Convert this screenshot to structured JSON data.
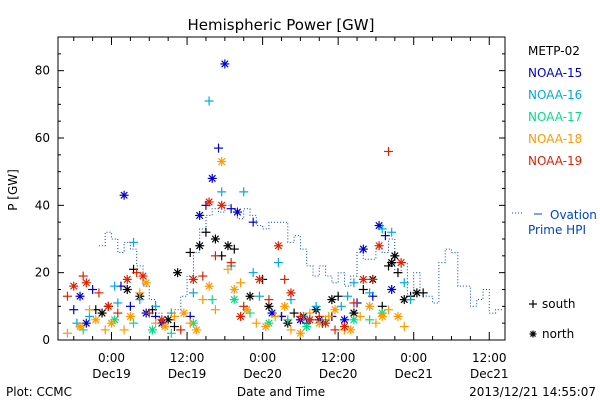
{
  "chart_data": {
    "type": "scatter",
    "title": "Hemispheric Power [GW]",
    "xlabel": "Date and Time",
    "ylabel": "P [GW]",
    "ylim": [
      0,
      90
    ],
    "xlim": [
      -8.5,
      62.5
    ],
    "yticks": [
      0,
      20,
      40,
      60,
      80
    ],
    "xticks": [
      {
        "hour": 0,
        "time": "0:00",
        "date": "Dec19"
      },
      {
        "hour": 12,
        "time": "12:00",
        "date": "Dec19"
      },
      {
        "hour": 24,
        "time": "0:00",
        "date": "Dec20"
      },
      {
        "hour": 36,
        "time": "12:00",
        "date": "Dec20"
      },
      {
        "hour": 48,
        "time": "0:00",
        "date": "Dec21"
      },
      {
        "hour": 60,
        "time": "12:00",
        "date": "Dec21"
      }
    ],
    "legend_placement": "right",
    "series": [
      {
        "name": "METP-02",
        "color": "#000000",
        "marker": "mixed",
        "points": [
          [
            -2.5,
            9
          ],
          [
            -1.5,
            8
          ],
          [
            -0.5,
            10
          ],
          [
            2.5,
            15
          ],
          [
            3.5,
            21
          ],
          [
            4.5,
            13
          ],
          [
            6.5,
            9
          ],
          [
            9,
            6
          ],
          [
            10,
            4
          ],
          [
            10.5,
            20
          ],
          [
            12.5,
            26
          ],
          [
            14,
            28
          ],
          [
            15,
            32
          ],
          [
            16.5,
            30
          ],
          [
            17.5,
            25
          ],
          [
            18.5,
            28
          ],
          [
            19.5,
            27
          ],
          [
            22,
            13
          ],
          [
            24,
            18
          ],
          [
            25,
            10
          ],
          [
            27,
            7
          ],
          [
            28,
            5
          ],
          [
            29,
            8
          ],
          [
            30.5,
            7
          ],
          [
            31.5,
            6
          ],
          [
            32.5,
            9
          ],
          [
            33.5,
            5
          ],
          [
            35,
            12
          ],
          [
            36,
            13
          ],
          [
            38.5,
            8
          ],
          [
            40,
            15
          ],
          [
            41.5,
            18
          ],
          [
            43,
            10
          ],
          [
            44.5,
            23
          ],
          [
            45.5,
            20
          ],
          [
            46.5,
            12
          ],
          [
            47.5,
            13
          ],
          [
            48.5,
            14
          ],
          [
            49.5,
            14
          ],
          [
            45,
            25
          ],
          [
            44,
            22
          ]
        ]
      },
      {
        "name": "NOAA-15",
        "color": "#0000cc",
        "marker": "mixed",
        "points": [
          [
            -6,
            9
          ],
          [
            -5,
            13
          ],
          [
            -3,
            15
          ],
          [
            -4,
            5
          ],
          [
            1.5,
            16
          ],
          [
            2,
            43
          ],
          [
            3,
            10
          ],
          [
            5.5,
            8
          ],
          [
            7,
            7
          ],
          [
            8,
            5
          ],
          [
            12.5,
            7
          ],
          [
            14,
            37
          ],
          [
            15,
            40
          ],
          [
            16,
            48
          ],
          [
            17,
            57
          ],
          [
            18,
            82
          ],
          [
            19,
            39
          ],
          [
            20,
            38
          ],
          [
            22.5,
            35
          ],
          [
            25.5,
            8
          ],
          [
            27,
            7
          ],
          [
            30,
            6
          ],
          [
            31,
            5
          ],
          [
            33,
            6
          ],
          [
            35,
            7
          ],
          [
            37,
            6
          ],
          [
            39,
            11
          ],
          [
            40,
            27
          ],
          [
            41.5,
            13
          ],
          [
            42.5,
            34
          ],
          [
            43.5,
            31
          ],
          [
            44.5,
            15
          ]
        ]
      },
      {
        "name": "NOAA-16",
        "color": "#00aadd",
        "marker": "plus",
        "points": [
          [
            -5.5,
            5
          ],
          [
            -3.5,
            7
          ],
          [
            0.5,
            16
          ],
          [
            1,
            11
          ],
          [
            3.5,
            29
          ],
          [
            4.5,
            12
          ],
          [
            7,
            10
          ],
          [
            9.5,
            8
          ],
          [
            13,
            14
          ],
          [
            15.5,
            71
          ],
          [
            17.5,
            44
          ],
          [
            19,
            22
          ],
          [
            21,
            44
          ],
          [
            22.5,
            20
          ],
          [
            23.5,
            13
          ],
          [
            26.5,
            23
          ],
          [
            28.5,
            12
          ],
          [
            30.5,
            7
          ],
          [
            32.5,
            10
          ],
          [
            36.5,
            10
          ],
          [
            37.5,
            13
          ],
          [
            38.5,
            17
          ],
          [
            41,
            14
          ],
          [
            43,
            33
          ],
          [
            44.5,
            32
          ],
          [
            46.5,
            17
          ],
          [
            47.5,
            12
          ]
        ]
      },
      {
        "name": "NOAA-17",
        "color": "#00dd88",
        "marker": "mixed",
        "points": [
          [
            -4.5,
            3
          ],
          [
            0.5,
            6
          ],
          [
            3.5,
            5
          ],
          [
            6.5,
            3
          ],
          [
            9.5,
            2
          ],
          [
            13,
            5
          ],
          [
            16,
            12
          ],
          [
            19.5,
            12
          ],
          [
            22,
            8
          ],
          [
            25,
            5
          ],
          [
            28,
            6
          ],
          [
            31,
            4
          ],
          [
            34,
            6
          ],
          [
            38.5,
            6
          ],
          [
            41,
            6
          ],
          [
            43,
            8
          ]
        ]
      },
      {
        "name": "NOAA-18",
        "color": "#ff9900",
        "marker": "mixed",
        "points": [
          [
            -7,
            2
          ],
          [
            -5,
            4
          ],
          [
            -3.5,
            9
          ],
          [
            -2.5,
            6
          ],
          [
            -1,
            3
          ],
          [
            0,
            5
          ],
          [
            2,
            3
          ],
          [
            3,
            7
          ],
          [
            4.5,
            14
          ],
          [
            5.5,
            17
          ],
          [
            7,
            5
          ],
          [
            8.5,
            4
          ],
          [
            10,
            7
          ],
          [
            11.5,
            8
          ],
          [
            12.5,
            5
          ],
          [
            13.5,
            3
          ],
          [
            14.5,
            12
          ],
          [
            15.5,
            16
          ],
          [
            16.5,
            9
          ],
          [
            17.5,
            53
          ],
          [
            18.5,
            21
          ],
          [
            19.5,
            15
          ],
          [
            20.5,
            17
          ],
          [
            21.5,
            9
          ],
          [
            23,
            5
          ],
          [
            24.5,
            4
          ],
          [
            26,
            7
          ],
          [
            27.5,
            10
          ],
          [
            28.5,
            3
          ],
          [
            30,
            2
          ],
          [
            31.5,
            8
          ],
          [
            33,
            5
          ],
          [
            34.5,
            7
          ],
          [
            35.5,
            9
          ],
          [
            37,
            3
          ],
          [
            38,
            3
          ],
          [
            39.5,
            7
          ],
          [
            41,
            10
          ],
          [
            42,
            5
          ],
          [
            43,
            7
          ],
          [
            44,
            9
          ],
          [
            45.5,
            7
          ],
          [
            46.5,
            4
          ]
        ]
      },
      {
        "name": "NOAA-19",
        "color": "#dd2200",
        "marker": "mixed",
        "points": [
          [
            -7,
            13
          ],
          [
            -6,
            16
          ],
          [
            -4.5,
            19
          ],
          [
            -4,
            17
          ],
          [
            -2,
            14
          ],
          [
            -0.5,
            10
          ],
          [
            1,
            8
          ],
          [
            2.5,
            18
          ],
          [
            4,
            20
          ],
          [
            5,
            19
          ],
          [
            6,
            8
          ],
          [
            8,
            6
          ],
          [
            11,
            3
          ],
          [
            13,
            18
          ],
          [
            14.5,
            19
          ],
          [
            15.5,
            41
          ],
          [
            16.5,
            25
          ],
          [
            17.5,
            40
          ],
          [
            19,
            23
          ],
          [
            20.5,
            7
          ],
          [
            21,
            10
          ],
          [
            23.5,
            18
          ],
          [
            25,
            12
          ],
          [
            26.5,
            28
          ],
          [
            27.5,
            18
          ],
          [
            28.5,
            14
          ],
          [
            30,
            7
          ],
          [
            31.5,
            6
          ],
          [
            33,
            7
          ],
          [
            34,
            5
          ],
          [
            35.5,
            3
          ],
          [
            37,
            4
          ],
          [
            38.5,
            11
          ],
          [
            40,
            18
          ],
          [
            41.5,
            18
          ],
          [
            42.5,
            28
          ],
          [
            44,
            56
          ],
          [
            46,
            23
          ]
        ]
      }
    ],
    "ovation": {
      "name": "Ovation Prime HPI",
      "color": "#0044cc",
      "points": [
        [
          -1.5,
          28
        ],
        [
          -0.5,
          32
        ],
        [
          0.5,
          30
        ],
        [
          1.5,
          26
        ],
        [
          2.5,
          29
        ],
        [
          3.5,
          27
        ],
        [
          4.5,
          22
        ],
        [
          5.5,
          16
        ],
        [
          6.5,
          12
        ],
        [
          7.5,
          8
        ],
        [
          8.5,
          7
        ],
        [
          9.5,
          6
        ],
        [
          10.5,
          9
        ],
        [
          11.5,
          13
        ],
        [
          12.5,
          19
        ],
        [
          13.5,
          26
        ],
        [
          14.5,
          33
        ],
        [
          15.5,
          37
        ],
        [
          16.5,
          39
        ],
        [
          17.5,
          38
        ],
        [
          18.5,
          40
        ],
        [
          19.5,
          38
        ],
        [
          20.5,
          36
        ],
        [
          21.5,
          39
        ],
        [
          22.5,
          37
        ],
        [
          23.5,
          34
        ],
        [
          24.5,
          33
        ],
        [
          25.5,
          35
        ],
        [
          26.5,
          35
        ],
        [
          27.5,
          35
        ],
        [
          28.5,
          29
        ],
        [
          29.5,
          31
        ],
        [
          30.5,
          27
        ],
        [
          31.5,
          22
        ],
        [
          32.5,
          19
        ],
        [
          33.5,
          22
        ],
        [
          34.5,
          19
        ],
        [
          35.5,
          17
        ],
        [
          36.5,
          20
        ],
        [
          37.5,
          16
        ],
        [
          38.5,
          19
        ],
        [
          39.5,
          26
        ],
        [
          40.5,
          24
        ],
        [
          41.5,
          24
        ],
        [
          42.5,
          27
        ],
        [
          43.5,
          26
        ],
        [
          44.5,
          30
        ],
        [
          45.5,
          20
        ],
        [
          46.5,
          23
        ],
        [
          47.5,
          12
        ],
        [
          48.5,
          20
        ],
        [
          49.5,
          14
        ],
        [
          50.5,
          13
        ],
        [
          51.5,
          11
        ],
        [
          52.5,
          23
        ],
        [
          53.5,
          27
        ],
        [
          54.5,
          26
        ],
        [
          55.5,
          16
        ],
        [
          56.5,
          16
        ],
        [
          57.5,
          10
        ],
        [
          58.5,
          12
        ],
        [
          59.5,
          15
        ],
        [
          60.5,
          8
        ],
        [
          61.5,
          9
        ]
      ]
    },
    "marker_legend": [
      {
        "symbol": "+",
        "label": "south"
      },
      {
        "symbol": "*",
        "label": "north"
      }
    ]
  },
  "footer": {
    "plot_credit": "Plot: CCMC",
    "timestamp": "2013/12/21 14:55:07"
  }
}
